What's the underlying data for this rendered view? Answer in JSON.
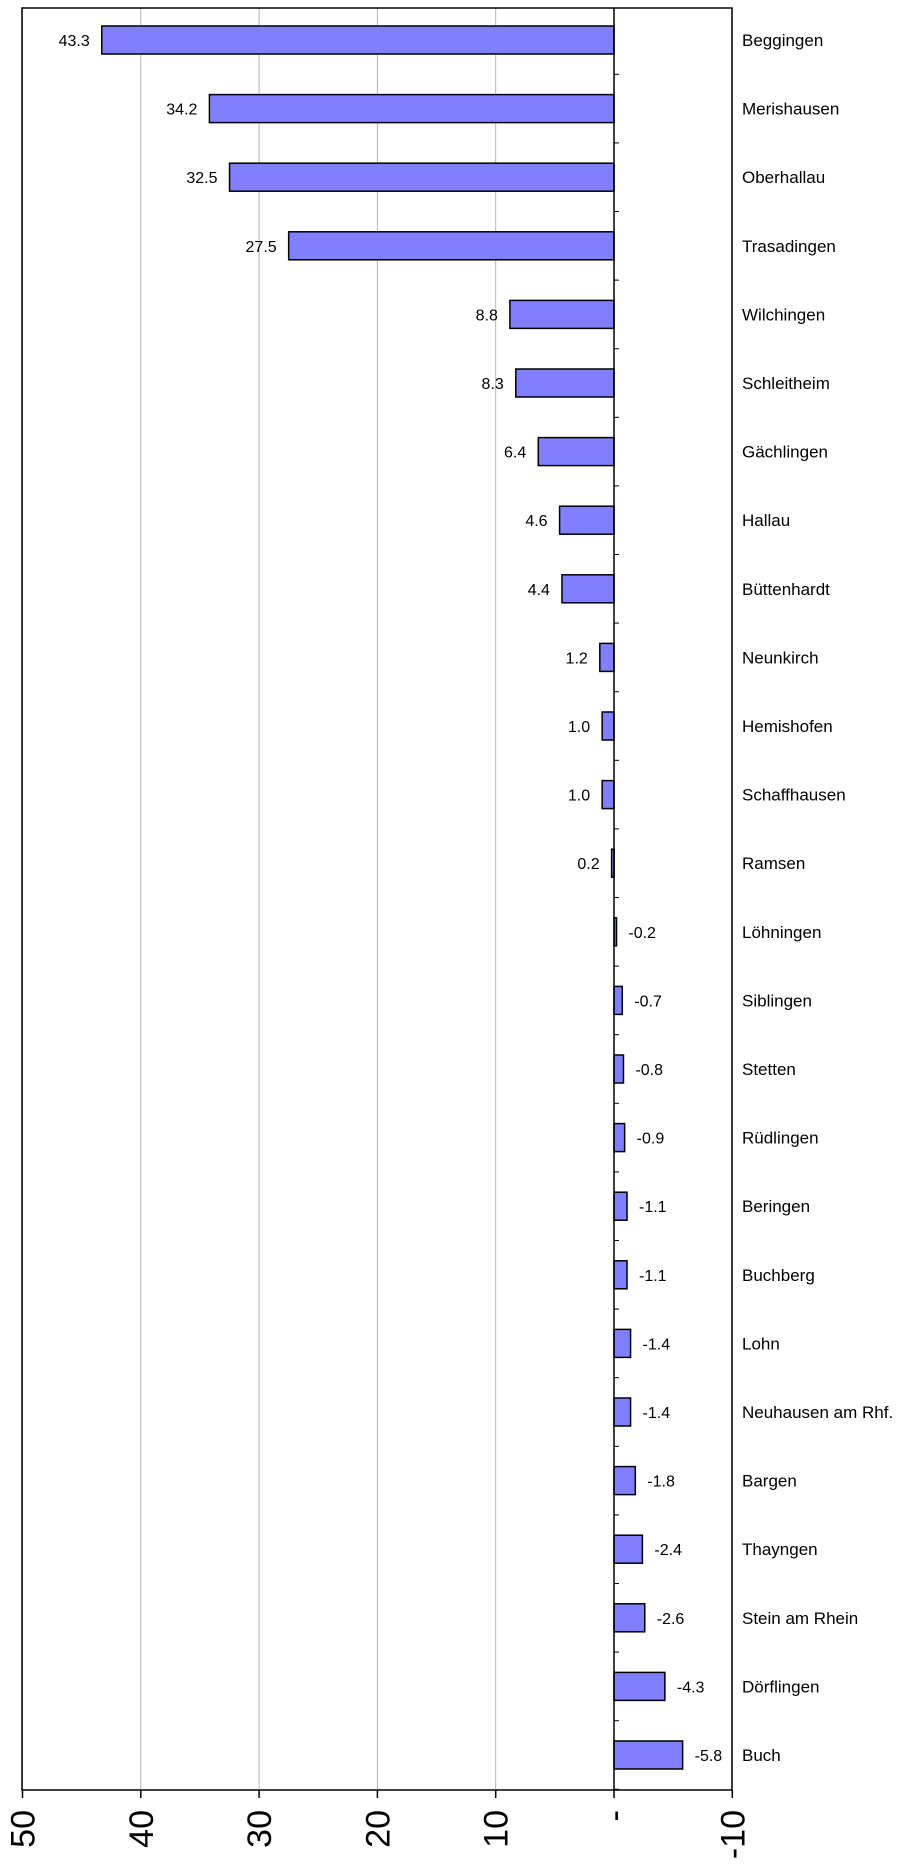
{
  "chart_data": {
    "type": "bar",
    "orientation": "horizontal",
    "x_axis_reversed": true,
    "categories": [
      "Beggingen",
      "Merishausen",
      "Oberhallau",
      "Trasadingen",
      "Wilchingen",
      "Schleitheim",
      "Gächlingen",
      "Hallau",
      "Büttenhardt",
      "Neunkirch",
      "Hemishofen",
      "Schaffhausen",
      "Ramsen",
      "Löhningen",
      "Siblingen",
      "Stetten",
      "Rüdlingen",
      "Beringen",
      "Buchberg",
      "Lohn",
      "Neuhausen am Rhf.",
      "Bargen",
      "Thayngen",
      "Stein am Rhein",
      "Dörflingen",
      "Buch"
    ],
    "values": [
      43.3,
      34.2,
      32.5,
      27.5,
      8.8,
      8.3,
      6.4,
      4.6,
      4.4,
      1.2,
      1.0,
      1.0,
      0.2,
      -0.2,
      -0.7,
      -0.8,
      -0.9,
      -1.1,
      -1.1,
      -1.4,
      -1.4,
      -1.8,
      -2.4,
      -2.6,
      -4.3,
      -5.8
    ],
    "value_labels": [
      "43.3",
      "34.2",
      "32.5",
      "27.5",
      "8.8",
      "8.3",
      "6.4",
      "4.6",
      "4.4",
      "1.2",
      "1.0",
      "1.0",
      "0.2",
      "-0.2",
      "-0.7",
      "-0.8",
      "-0.9",
      "-1.1",
      "-1.1",
      "-1.4",
      "-1.4",
      "-1.8",
      "-2.4",
      "-2.6",
      "-4.3",
      "-5.8"
    ],
    "xlim": [
      -10,
      50
    ],
    "x_ticks": [
      50,
      40,
      30,
      20,
      10,
      0,
      -10
    ],
    "x_tick_labels": [
      "50",
      "40",
      "30",
      "20",
      "10",
      "-",
      "-10"
    ],
    "grid": true,
    "legend": "none",
    "colors": {
      "bar_fill": "#8080ff",
      "bar_stroke": "#000000",
      "grid": "#b4b4b4",
      "axis": "#000000"
    }
  }
}
